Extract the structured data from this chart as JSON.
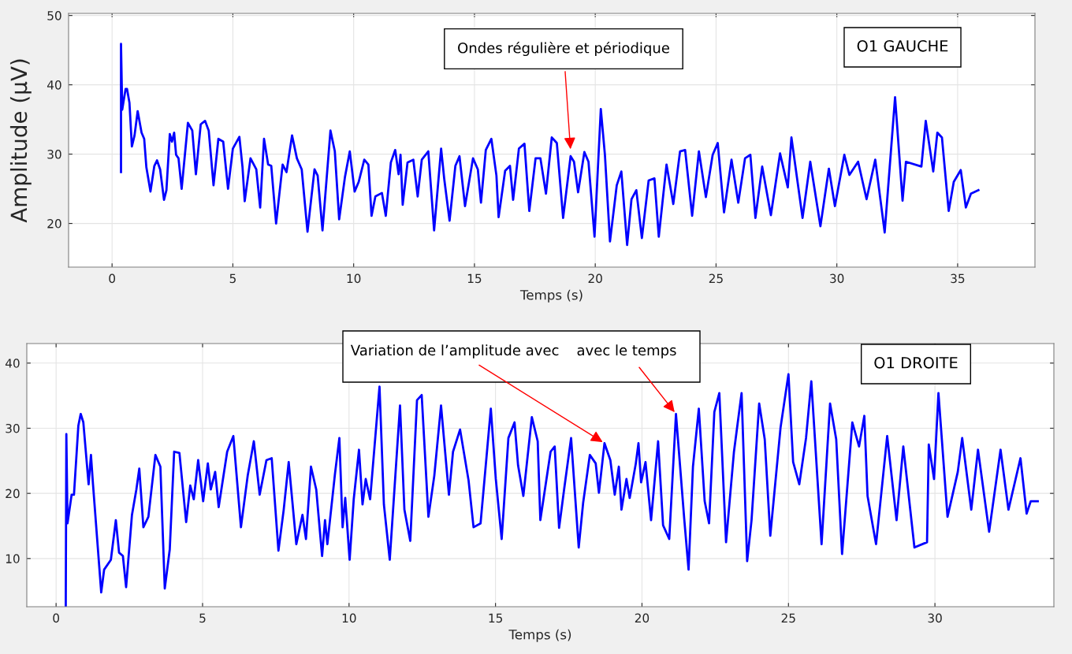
{
  "chart_data": [
    {
      "type": "line",
      "xlabel": "Temps (s)",
      "ylabel": "Amplitude (μV)",
      "xlim": [
        -1.8,
        38.2
      ],
      "ylim": [
        13.7,
        50.3
      ],
      "xticks": [
        0,
        5,
        10,
        15,
        20,
        25,
        30,
        35
      ],
      "yticks": [
        20,
        30,
        40,
        50
      ],
      "grid": true,
      "marker": "none",
      "line_style": "solid",
      "annotations": [
        {
          "text": "Ondes régulière et périodique",
          "x": 18.98,
          "y": 30.4
        },
        "O1 GAUCHE"
      ],
      "series": [
        {
          "color": "#0000ff",
          "x": [
            0.37,
            0.37,
            0.42,
            0.56,
            0.62,
            0.72,
            0.82,
            0.93,
            1.06,
            1.22,
            1.33,
            1.42,
            1.59,
            1.75,
            1.86,
            1.99,
            2.15,
            2.25,
            2.39,
            2.48,
            2.57,
            2.65,
            2.75,
            2.88,
            3.14,
            3.32,
            3.47,
            3.67,
            3.85,
            4.0,
            4.2,
            4.4,
            4.6,
            4.8,
            5.0,
            5.27,
            5.4,
            5.49,
            5.73,
            5.97,
            6.13,
            6.29,
            6.46,
            6.59,
            6.79,
            7.06,
            7.22,
            7.45,
            7.65,
            7.85,
            8.09,
            8.38,
            8.51,
            8.71,
            9.04,
            9.22,
            9.4,
            9.64,
            9.84,
            10.04,
            10.21,
            10.44,
            10.61,
            10.74,
            10.9,
            11.17,
            11.33,
            11.54,
            11.72,
            11.86,
            11.94,
            12.03,
            12.23,
            12.47,
            12.65,
            12.82,
            13.09,
            13.33,
            13.62,
            13.75,
            13.97,
            14.21,
            14.38,
            14.61,
            14.94,
            15.14,
            15.27,
            15.47,
            15.7,
            15.91,
            16.0,
            16.27,
            16.47,
            16.6,
            16.84,
            17.07,
            17.27,
            17.53,
            17.73,
            17.96,
            18.2,
            18.41,
            18.67,
            18.98,
            19.12,
            19.29,
            19.55,
            19.72,
            19.97,
            20.23,
            20.4,
            20.61,
            20.89,
            21.08,
            21.32,
            21.5,
            21.7,
            21.93,
            22.21,
            22.45,
            22.63,
            22.95,
            23.23,
            23.51,
            23.72,
            24.01,
            24.29,
            24.58,
            24.86,
            25.07,
            25.33,
            25.64,
            25.92,
            26.2,
            26.42,
            26.63,
            26.91,
            27.27,
            27.65,
            27.97,
            28.12,
            28.58,
            28.9,
            29.32,
            29.67,
            29.92,
            30.31,
            30.52,
            30.88,
            31.23,
            31.59,
            31.98,
            32.41,
            32.72,
            32.86,
            33.5,
            33.68,
            33.99,
            34.16,
            34.35,
            34.63,
            34.84,
            35.13,
            35.34,
            35.55,
            35.86
          ],
          "values": [
            27.4,
            45.9,
            36.4,
            39.4,
            39.4,
            37.4,
            31.1,
            32.7,
            36.2,
            33.1,
            32.2,
            28.1,
            24.6,
            28.3,
            29.1,
            27.8,
            23.4,
            24.8,
            32.9,
            31.8,
            33.1,
            29.9,
            29.4,
            25.0,
            34.5,
            33.4,
            27.1,
            34.3,
            34.8,
            33.4,
            25.5,
            32.2,
            31.8,
            25.0,
            30.8,
            32.5,
            28.1,
            23.2,
            29.4,
            27.8,
            22.3,
            32.2,
            28.5,
            28.3,
            20.0,
            28.5,
            27.4,
            32.7,
            29.4,
            27.8,
            18.8,
            27.8,
            26.9,
            19.0,
            33.4,
            30.4,
            20.6,
            26.7,
            30.4,
            24.6,
            26.0,
            29.2,
            28.5,
            21.1,
            23.9,
            24.4,
            21.1,
            28.8,
            30.6,
            27.1,
            29.9,
            22.7,
            28.8,
            29.2,
            23.9,
            29.2,
            30.4,
            19.0,
            30.8,
            26.4,
            20.4,
            28.3,
            29.7,
            22.5,
            29.4,
            27.8,
            23.0,
            30.6,
            32.2,
            26.9,
            20.9,
            27.6,
            28.3,
            23.4,
            30.8,
            31.5,
            21.8,
            29.4,
            29.4,
            24.3,
            32.4,
            31.6,
            20.8,
            29.7,
            28.9,
            24.5,
            30.3,
            28.9,
            18.1,
            36.5,
            29.9,
            17.4,
            25.5,
            27.5,
            16.9,
            23.5,
            24.8,
            17.9,
            26.2,
            26.5,
            18.1,
            28.5,
            22.8,
            30.4,
            30.6,
            21.1,
            30.4,
            23.8,
            29.9,
            31.6,
            21.6,
            29.2,
            23.0,
            29.4,
            29.9,
            20.8,
            28.2,
            21.2,
            30.1,
            25.2,
            32.4,
            20.8,
            28.9,
            19.6,
            27.9,
            22.5,
            29.9,
            27.0,
            28.9,
            23.5,
            29.2,
            18.7,
            38.2,
            23.3,
            28.9,
            28.2,
            34.8,
            27.5,
            33.1,
            32.4,
            21.8,
            26.0,
            27.7,
            22.3,
            24.3,
            24.8
          ]
        }
      ]
    },
    {
      "type": "line",
      "xlabel": "Temps (s)",
      "xlim": [
        -1,
        34.06
      ],
      "ylim": [
        2.6,
        43
      ],
      "xticks": [
        0,
        5,
        10,
        15,
        20,
        25,
        30
      ],
      "yticks": [
        10,
        20,
        30,
        40
      ],
      "grid": true,
      "marker": "none",
      "line_style": "solid",
      "annotations": [
        {
          "text": "Variation de l’amplitude avec ",
          "x": 18.72,
          "y": 27.7
        },
        {
          "text": "avec le temps",
          "x": 21.16,
          "y": 32.2
        },
        "O1 DROITE"
      ],
      "series": [
        {
          "color": "#0000ff",
          "x": [
            0.33,
            0.35,
            0.39,
            0.53,
            0.61,
            0.76,
            0.84,
            0.93,
            1.11,
            1.19,
            1.26,
            1.54,
            1.64,
            1.87,
            2.04,
            2.15,
            2.28,
            2.39,
            2.59,
            2.74,
            2.84,
            2.98,
            3.15,
            3.39,
            3.56,
            3.71,
            3.88,
            4.03,
            4.21,
            4.44,
            4.58,
            4.7,
            4.85,
            5.02,
            5.18,
            5.28,
            5.43,
            5.55,
            5.84,
            6.05,
            6.31,
            6.54,
            6.75,
            6.95,
            7.18,
            7.36,
            7.59,
            7.77,
            7.94,
            8.2,
            8.41,
            8.53,
            8.7,
            8.88,
            9.08,
            9.18,
            9.26,
            9.52,
            9.67,
            9.78,
            9.87,
            10.02,
            10.16,
            10.34,
            10.46,
            10.57,
            10.72,
            11.04,
            11.19,
            11.39,
            11.74,
            11.89,
            12.09,
            12.32,
            12.48,
            12.71,
            12.91,
            13.14,
            13.41,
            13.55,
            13.79,
            14.08,
            14.25,
            14.49,
            14.84,
            15.01,
            15.21,
            15.44,
            15.65,
            15.77,
            15.95,
            16.24,
            16.44,
            16.53,
            16.88,
            17.02,
            17.17,
            17.35,
            17.58,
            17.84,
            17.99,
            18.22,
            18.42,
            18.53,
            18.72,
            18.92,
            19.07,
            19.21,
            19.3,
            19.47,
            19.58,
            19.79,
            19.88,
            19.97,
            20.12,
            20.31,
            20.55,
            20.72,
            20.93,
            21.16,
            21.44,
            21.59,
            21.74,
            21.94,
            22.14,
            22.29,
            22.47,
            22.64,
            22.87,
            23.14,
            23.4,
            23.59,
            23.74,
            24.0,
            24.19,
            24.38,
            24.73,
            25.0,
            25.16,
            25.37,
            25.6,
            25.78,
            26.13,
            26.42,
            26.63,
            26.83,
            27.18,
            27.41,
            27.59,
            27.7,
            27.99,
            28.37,
            28.69,
            28.92,
            29.3,
            29.73,
            29.79,
            29.97,
            30.12,
            30.43,
            30.78,
            30.93,
            31.24,
            31.47,
            31.85,
            32.24,
            32.51,
            32.92,
            33.13,
            33.27,
            33.51
          ],
          "values": [
            2.6,
            29.1,
            15.4,
            19.8,
            19.8,
            30.4,
            32.2,
            30.9,
            21.4,
            25.9,
            21.4,
            4.8,
            8.3,
            9.8,
            15.9,
            10.9,
            10.4,
            5.6,
            16.7,
            20.6,
            23.8,
            14.8,
            16.4,
            25.9,
            24.1,
            5.4,
            11.4,
            26.4,
            26.2,
            15.6,
            21.2,
            19.1,
            25.1,
            18.8,
            24.6,
            20.6,
            23.3,
            17.9,
            26.4,
            28.8,
            14.8,
            22.7,
            28.0,
            19.8,
            25.1,
            25.4,
            11.2,
            17.5,
            24.8,
            12.2,
            16.7,
            13.0,
            24.1,
            20.6,
            10.4,
            15.9,
            12.2,
            23.0,
            28.5,
            14.8,
            19.3,
            9.8,
            19.1,
            26.7,
            18.3,
            22.2,
            19.1,
            36.4,
            18.3,
            9.8,
            33.5,
            17.5,
            12.7,
            34.3,
            35.1,
            16.4,
            22.7,
            33.5,
            19.8,
            26.4,
            29.8,
            22.0,
            14.8,
            15.4,
            33.0,
            22.2,
            13.0,
            28.5,
            30.9,
            24.3,
            19.6,
            31.7,
            28.0,
            15.9,
            26.4,
            27.2,
            14.7,
            20.9,
            28.5,
            11.7,
            18.5,
            25.9,
            24.6,
            20.1,
            27.7,
            25.1,
            19.8,
            24.1,
            17.5,
            22.2,
            19.3,
            24.6,
            27.7,
            21.7,
            24.8,
            15.9,
            28.0,
            15.1,
            13.0,
            32.2,
            16.2,
            8.3,
            24.1,
            33.0,
            18.8,
            15.4,
            32.5,
            35.4,
            12.5,
            26.4,
            35.4,
            9.6,
            15.9,
            33.8,
            28.3,
            13.5,
            30.1,
            38.3,
            24.8,
            21.4,
            28.5,
            37.2,
            12.2,
            33.8,
            28.3,
            10.7,
            30.9,
            27.2,
            31.9,
            19.6,
            12.2,
            28.8,
            15.9,
            27.2,
            11.7,
            12.5,
            27.5,
            22.2,
            35.4,
            16.4,
            23.3,
            28.5,
            17.5,
            26.7,
            14.1,
            26.7,
            17.5,
            25.4,
            16.9,
            18.8,
            18.8
          ]
        }
      ]
    }
  ]
}
